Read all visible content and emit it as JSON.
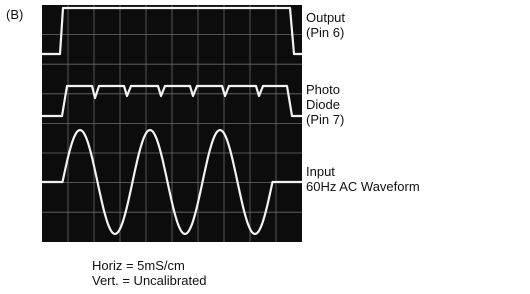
{
  "figure_label": "(B)",
  "traces": [
    {
      "lines": [
        "Output",
        "(Pin 6)"
      ]
    },
    {
      "lines": [
        "Photo",
        "Diode",
        "(Pin 7)"
      ]
    },
    {
      "lines": [
        "Input",
        "60Hz AC Waveform"
      ]
    }
  ],
  "footer": [
    "Horiz = 5mS/cm",
    "Vert. = Uncalibrated"
  ]
}
